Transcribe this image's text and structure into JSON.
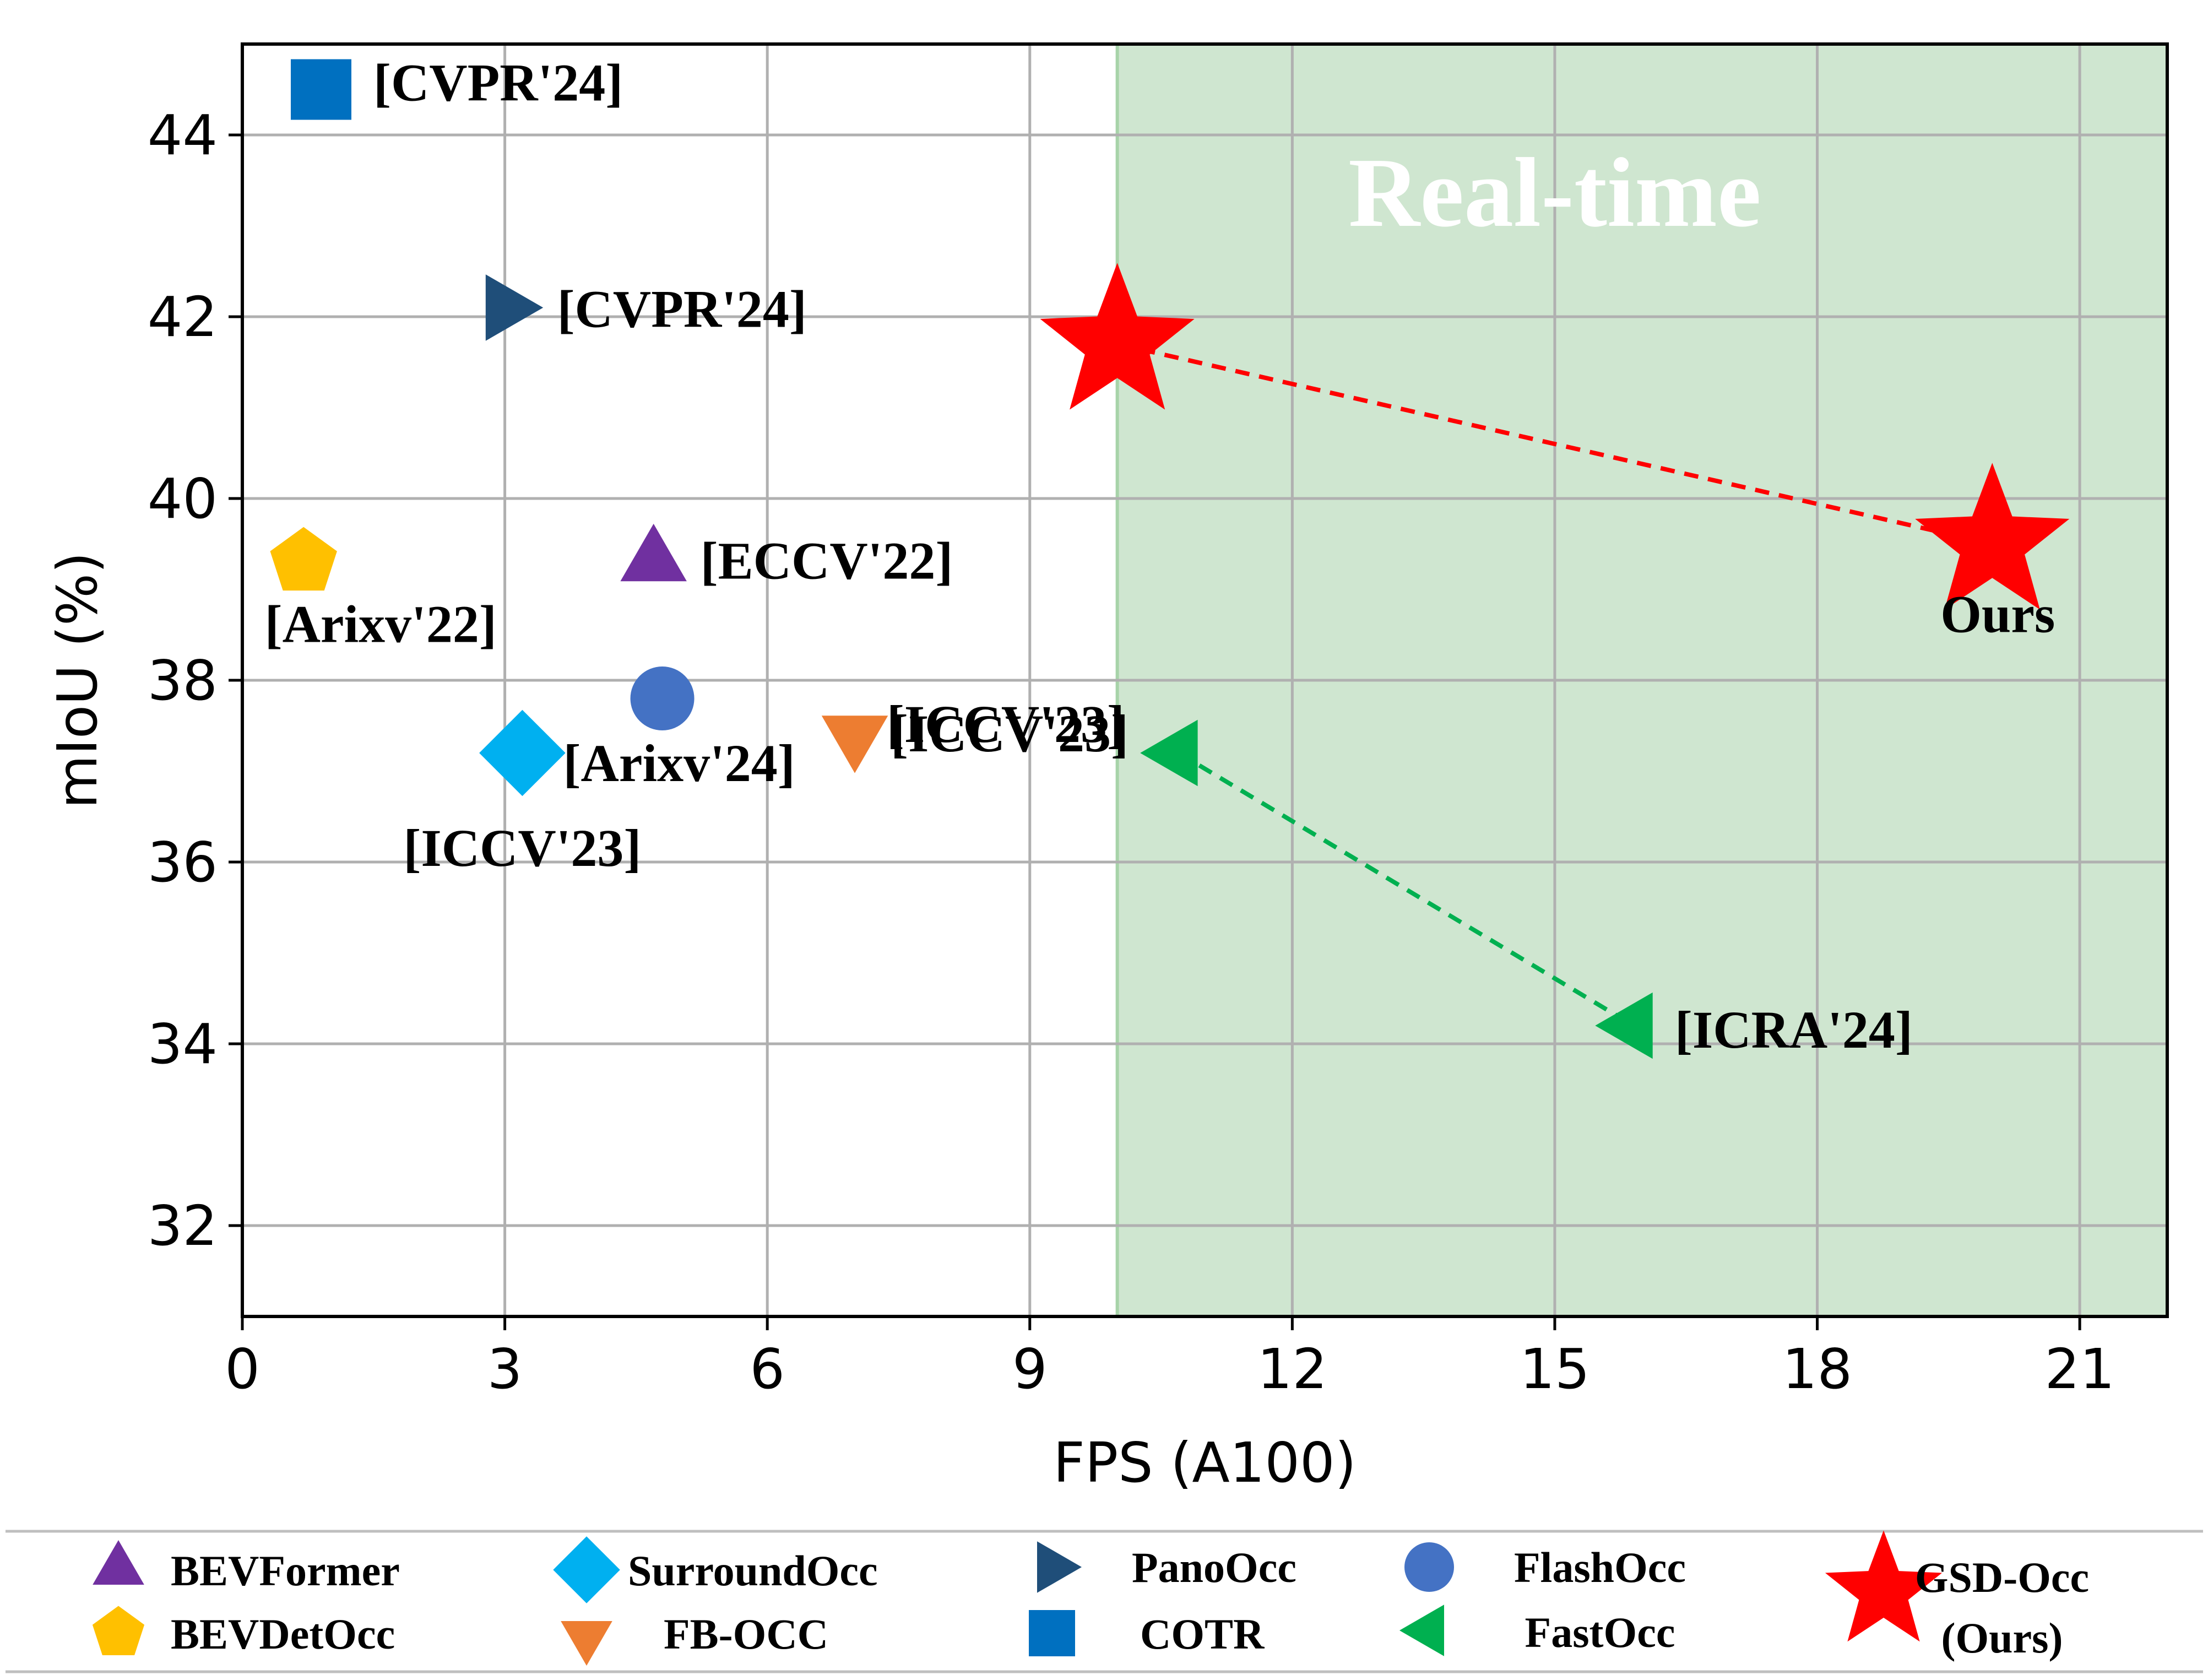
{
  "chart_data": {
    "type": "scatter",
    "xlabel": "FPS (A100)",
    "ylabel": "mIoU (%)",
    "xlim": [
      0,
      22
    ],
    "ylim": [
      31,
      45
    ],
    "xticks": [
      0,
      3,
      6,
      9,
      12,
      15,
      18,
      21
    ],
    "yticks": [
      32,
      34,
      36,
      38,
      40,
      42,
      44
    ],
    "grid": true,
    "shaded_region": {
      "x_from": 10,
      "x_to": 22,
      "label": "Real-time",
      "color": "#cfe6d0"
    },
    "series": [
      {
        "name": "BEVFormer",
        "marker": "triangle-up",
        "color": "#7030a0",
        "x": 4.7,
        "y": 39.3,
        "annotation": "[ECCV'22]"
      },
      {
        "name": "BEVDetOcc",
        "marker": "pentagon",
        "color": "#ffc000",
        "x": 0.7,
        "y": 39.3,
        "annotation": "[Arixv'22]"
      },
      {
        "name": "SurroundOcc",
        "marker": "diamond",
        "color": "#00b0f0",
        "x": 3.2,
        "y": 37.2,
        "annotation": "[ICCV'23]"
      },
      {
        "name": "FB-OCC",
        "marker": "triangle-down",
        "color": "#ed7d31",
        "x": 7.0,
        "y": 37.4,
        "annotation": "[ICCV'23]"
      },
      {
        "name": "PanoOcc",
        "marker": "triangle-right",
        "color": "#1f4e79",
        "x": 3.0,
        "y": 42.1,
        "annotation": "[CVPR'24]"
      },
      {
        "name": "COTR",
        "marker": "square",
        "color": "#0070c0",
        "x": 0.9,
        "y": 44.5,
        "annotation": "[CVPR'24]"
      },
      {
        "name": "FlashOcc",
        "marker": "circle",
        "color": "#4472c4",
        "x": 4.8,
        "y": 37.8,
        "annotation": "[Arixv'24]"
      },
      {
        "name": "FastOcc",
        "marker": "triangle-left",
        "color": "#00b050",
        "points": [
          {
            "x": 10.7,
            "y": 37.2,
            "annotation": "[ICCV'23]"
          },
          {
            "x": 15.9,
            "y": 34.2,
            "annotation": "[ICRA'24]"
          }
        ]
      },
      {
        "name": "GSD-Occ\n(Ours)",
        "legend_lines": [
          "GSD-Occ",
          "(Ours)"
        ],
        "marker": "star",
        "color": "#ff0000",
        "points": [
          {
            "x": 10.0,
            "y": 41.7,
            "annotation": ""
          },
          {
            "x": 20.0,
            "y": 39.5,
            "annotation": "Ours"
          }
        ]
      }
    ],
    "legend": {
      "placement": "bottom",
      "columns": 5
    }
  }
}
